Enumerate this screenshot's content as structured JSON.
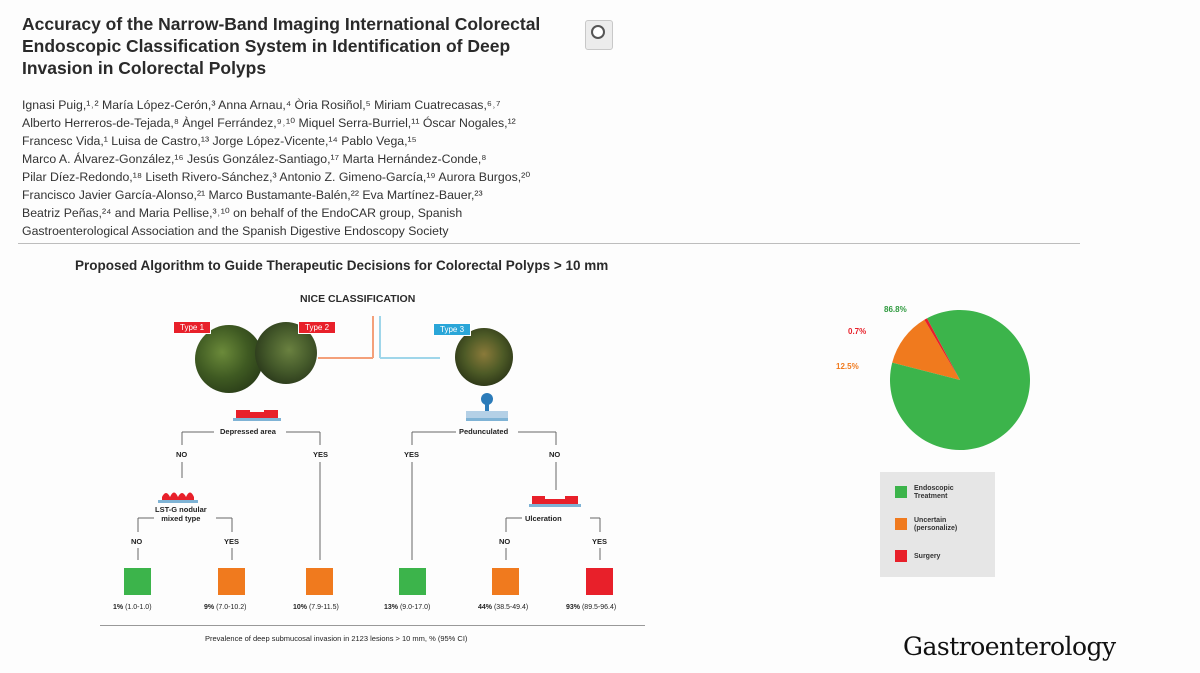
{
  "paper": {
    "title_lines": [
      "Accuracy of the Narrow-Band Imaging International Colorectal",
      "Endoscopic Classification System in Identification of Deep",
      "Invasion in Colorectal Polyps"
    ],
    "author_lines": [
      "Ignasi Puig,¹˒² María López-Cerón,³ Anna Arnau,⁴ Òria Rosiñol,⁵ Miriam Cuatrecasas,⁶˒⁷",
      "Alberto Herreros-de-Tejada,⁸ Àngel Ferrández,⁹˒¹⁰ Miquel Serra-Burriel,¹¹ Óscar Nogales,¹²",
      "Francesc Vida,¹ Luisa de Castro,¹³ Jorge López-Vicente,¹⁴ Pablo Vega,¹⁵",
      "Marco A. Álvarez-González,¹⁶ Jesús González-Santiago,¹⁷ Marta Hernández-Conde,⁸",
      "Pilar Díez-Redondo,¹⁸ Liseth Rivero-Sánchez,³ Antonio Z. Gimeno-García,¹⁹ Aurora Burgos,²⁰",
      "Francisco Javier García-Alonso,²¹ Marco Bustamante-Balén,²² Eva Martínez-Bauer,²³",
      "Beatriz Peñas,²⁴ and Maria Pellise,³˒¹⁰ on behalf of the EndoCAR group, Spanish",
      "Gastroenterological Association and the Spanish Digestive Endoscopy Society"
    ]
  },
  "figure": {
    "title": "Proposed Algorithm to Guide Therapeutic Decisions for Colorectal Polyps > 10 mm",
    "nice_label": "NICE CLASSIFICATION",
    "type_tags": [
      "Type 1",
      "Type 2",
      "Type 3"
    ],
    "nodes": {
      "depressed": "Depressed area",
      "pedunculated": "Pedunculated",
      "lst": [
        "LST-G nodular",
        "mixed type"
      ],
      "ulceration": "Ulceration"
    },
    "branches": {
      "no": "NO",
      "yes": "YES"
    },
    "outcomes": [
      {
        "pct": "1%",
        "ci": "(1.0-1.0)",
        "color": "#3cb44b"
      },
      {
        "pct": "9%",
        "ci": "(7.0-10.2)",
        "color": "#f07a1e"
      },
      {
        "pct": "10%",
        "ci": "(7.9-11.5)",
        "color": "#f07a1e"
      },
      {
        "pct": "13%",
        "ci": "(9.0-17.0)",
        "color": "#3cb44b"
      },
      {
        "pct": "44%",
        "ci": "(38.5-49.4)",
        "color": "#f07a1e"
      },
      {
        "pct": "93%",
        "ci": "(89.5-96.4)",
        "color": "#e8202a"
      }
    ],
    "caption": "Prevalence of deep submucosal invasion in 2123 lesions > 10 mm, % (95% CI)"
  },
  "chart_data": {
    "type": "pie",
    "title": "",
    "slices": [
      {
        "name": "Endoscopic Treatment",
        "value": 86.8,
        "label": "86.8%",
        "color": "#3cb44b"
      },
      {
        "name": "Uncertain (personalize)",
        "value": 12.5,
        "label": "12.5%",
        "color": "#f07a1e"
      },
      {
        "name": "Surgery",
        "value": 0.7,
        "label": "0.7%",
        "color": "#e8202a"
      }
    ],
    "legend": [
      {
        "lines": [
          "Endoscopic",
          "Treatment"
        ],
        "color": "#3cb44b"
      },
      {
        "lines": [
          "Uncertain",
          "(personalize)"
        ],
        "color": "#f07a1e"
      },
      {
        "lines": [
          "Surgery"
        ],
        "color": "#e8202a"
      }
    ]
  },
  "journal": "Gastroenterology"
}
